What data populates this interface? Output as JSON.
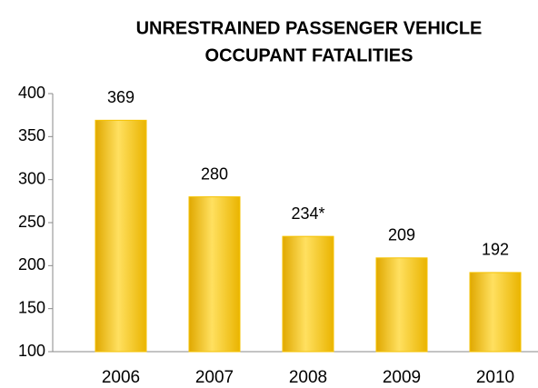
{
  "chart_data": {
    "type": "bar",
    "title": [
      "UNRESTRAINED PASSENGER VEHICLE",
      "OCCUPANT  FATALITIES"
    ],
    "categories": [
      "2006",
      "2007",
      "2008",
      "2009",
      "2010"
    ],
    "values": [
      369,
      280,
      234,
      209,
      192
    ],
    "value_labels": [
      "369",
      "280",
      "234*",
      "209",
      "192"
    ],
    "color": "#f5c200",
    "ylim": [
      100,
      400
    ],
    "yticks": [
      100,
      150,
      200,
      250,
      300,
      350,
      400
    ],
    "grid": false
  }
}
